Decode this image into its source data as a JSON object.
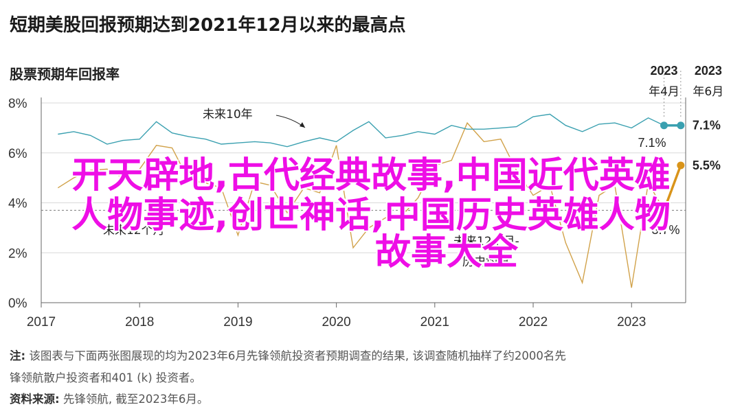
{
  "title": "短期美股回报预期达到2021年12月以来的最高点",
  "subtitle": "股票预期年回报率",
  "note_label": "注:",
  "note_text": "该图表与下面两张图展现的均为2023年6月先锋领航投资者预期调查的结果, 该调查随机抽样了约2000名先",
  "note_text2": "锋领航散户投资者和401 (k) 投资者。",
  "source_label": "资料来源:",
  "source_text": "先锋领航, 截至2023年6月。",
  "overlay": {
    "line1": "开天辟地,古代经典故事,中国近代英雄",
    "line2": "人物事迹,创世神话,中国历史英雄人物",
    "line3": "故事大全"
  },
  "chart_data": {
    "type": "line",
    "title": "短期美股回报预期达到2021年12月以来的最高点",
    "ylabel": "股票预期年回报率",
    "xlim": [
      2017.0,
      2023.55
    ],
    "ylim": [
      0,
      8
    ],
    "x_ticks": [
      2017,
      2018,
      2019,
      2020,
      2021,
      2022,
      2023
    ],
    "x_tick_labels": [
      "2017",
      "2018",
      "2019",
      "2020",
      "2021",
      "2022",
      "2023"
    ],
    "y_ticks": [
      0,
      2,
      4,
      6,
      8
    ],
    "y_tick_labels": [
      "0%",
      "2%",
      "4%",
      "6%",
      "8%"
    ],
    "grid": "horizontal",
    "colors": {
      "ten_year": "#3aa0b0",
      "twelve_month": "#d1a24a",
      "twelve_month_highlight": "#d9941a",
      "avg": "#7a7a7a"
    },
    "series": [
      {
        "name": "未来10年",
        "x": [
          2017.17,
          2017.33,
          2017.5,
          2017.67,
          2017.83,
          2018.0,
          2018.17,
          2018.33,
          2018.5,
          2018.67,
          2018.83,
          2019.0,
          2019.17,
          2019.33,
          2019.5,
          2019.67,
          2019.83,
          2020.0,
          2020.17,
          2020.33,
          2020.5,
          2020.67,
          2020.83,
          2021.0,
          2021.17,
          2021.33,
          2021.5,
          2021.67,
          2021.83,
          2022.0,
          2022.17,
          2022.33,
          2022.5,
          2022.67,
          2022.83,
          2023.0,
          2023.17,
          2023.33,
          2023.5
        ],
        "values": [
          6.75,
          6.85,
          6.7,
          6.35,
          6.5,
          6.55,
          7.25,
          6.8,
          6.65,
          6.55,
          6.35,
          6.4,
          6.45,
          6.4,
          6.25,
          6.45,
          6.6,
          6.45,
          6.9,
          7.25,
          6.6,
          6.7,
          6.85,
          6.75,
          7.1,
          6.95,
          6.95,
          7.0,
          7.05,
          7.45,
          7.55,
          7.1,
          6.85,
          7.15,
          7.2,
          7.0,
          7.4,
          7.1,
          7.1
        ]
      },
      {
        "name": "未来12个月",
        "x": [
          2017.17,
          2017.33,
          2017.5,
          2017.67,
          2017.83,
          2018.0,
          2018.17,
          2018.33,
          2018.5,
          2018.67,
          2018.83,
          2019.0,
          2019.17,
          2019.33,
          2019.5,
          2019.67,
          2019.83,
          2020.0,
          2020.17,
          2020.33,
          2020.5,
          2020.67,
          2020.83,
          2021.0,
          2021.17,
          2021.33,
          2021.5,
          2021.67,
          2021.83,
          2022.0,
          2022.17,
          2022.33,
          2022.5,
          2022.67,
          2022.83,
          2023.0,
          2023.17,
          2023.33,
          2023.5
        ],
        "values": [
          4.6,
          5.0,
          5.3,
          5.35,
          5.0,
          5.35,
          6.3,
          6.2,
          4.9,
          4.8,
          4.6,
          2.7,
          4.85,
          4.7,
          3.6,
          4.6,
          4.4,
          6.3,
          2.2,
          3.0,
          3.4,
          3.5,
          4.2,
          5.5,
          5.7,
          7.2,
          6.45,
          6.55,
          5.3,
          4.3,
          4.7,
          2.4,
          0.8,
          4.3,
          4.7,
          0.6,
          4.8,
          3.7,
          5.5
        ]
      }
    ],
    "average_12m": 3.7,
    "labels": {
      "ten_year_series": "未来10年",
      "twelve_month_series": "未来12个月",
      "avg_line1": "未来12个月-",
      "avg_line2": "历史均值",
      "apr_line1": "2023",
      "apr_line2": "年4月",
      "jun_line1": "2023",
      "jun_line2": "年6月",
      "ten_year_apr_value": "7.1%",
      "ten_year_jun_value": "7.1%",
      "twelve_month_jun_value": "5.5%",
      "twelve_month_apr_value": "3.7%"
    }
  }
}
